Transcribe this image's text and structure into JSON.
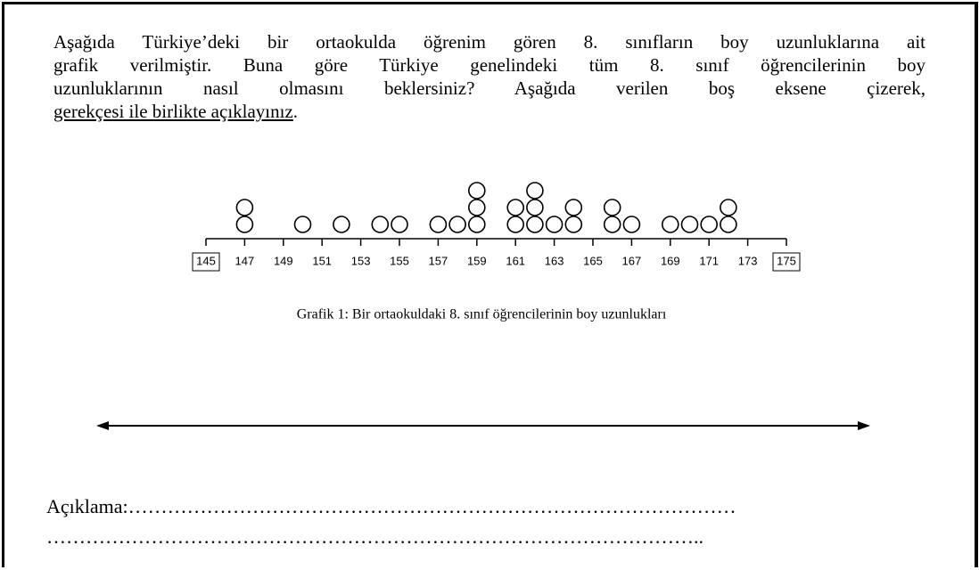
{
  "question": {
    "lines": [
      "Aşağıda Türkiye’deki bir ortaokulda öğrenim gören 8. sınıfların boy uzunluklarına ait",
      "grafik verilmiştir. Buna göre Türkiye genelindeki tüm 8. sınıf öğrencilerinin boy",
      "uzunluklarının nasıl olmasını beklersiniz? Aşağıda verilen boş eksene çizerek,"
    ],
    "underlined": "gerekçesi ile birlikte açıklayınız",
    "end": "."
  },
  "chart_data": {
    "type": "dotplot",
    "caption": "Grafik 1: Bir ortaokuldaki 8. sınıf öğrencilerinin boy uzunlukları",
    "x": [
      147,
      150,
      152,
      154,
      155,
      157,
      158,
      159,
      161,
      162,
      163,
      164,
      166,
      167,
      169,
      170,
      171,
      172
    ],
    "values": [
      2,
      1,
      1,
      1,
      1,
      1,
      1,
      3,
      2,
      3,
      1,
      2,
      2,
      1,
      1,
      1,
      1,
      2
    ],
    "xlim": [
      145,
      175
    ],
    "xticks": [
      145,
      147,
      149,
      151,
      153,
      155,
      157,
      159,
      161,
      163,
      165,
      167,
      169,
      171,
      173,
      175
    ]
  },
  "answer": {
    "label": "Açıklama:",
    "line1": "…………………………………………………………………………………",
    "line2": "……………………………………………………………………………………….."
  }
}
